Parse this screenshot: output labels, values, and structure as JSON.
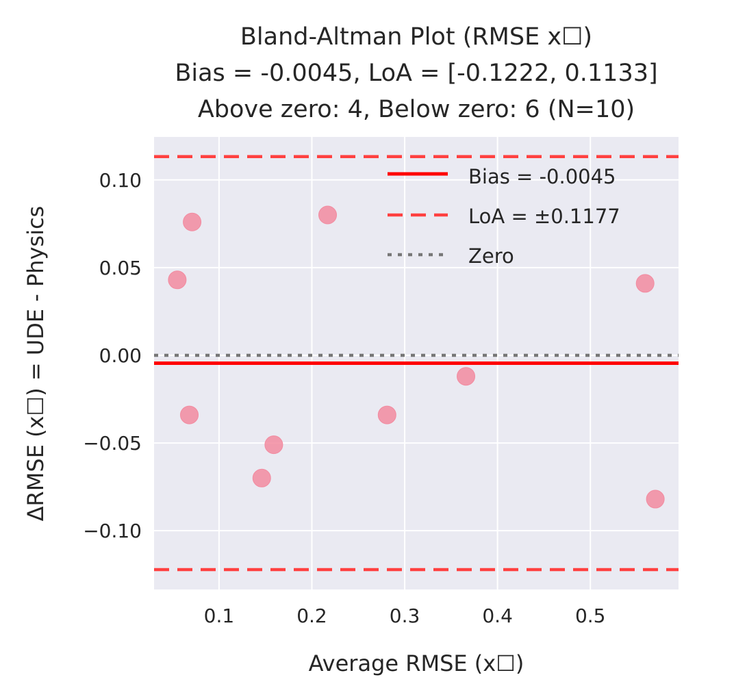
{
  "chart_data": {
    "type": "scatter",
    "title_lines": [
      "Bland-Altman Plot (RMSE x☐)",
      "Bias = -0.0045, LoA = [-0.1222, 0.1133]",
      "Above zero: 4, Below zero: 6 (N=10)"
    ],
    "xlabel": "Average RMSE (x☐)",
    "ylabel": "ΔRMSE (x☐) = UDE - Physics",
    "xlim": [
      0.03,
      0.595
    ],
    "ylim": [
      -0.1335,
      0.1245
    ],
    "x_ticks": [
      0.1,
      0.2,
      0.3,
      0.4,
      0.5
    ],
    "x_tick_labels": [
      "0.1",
      "0.2",
      "0.3",
      "0.4",
      "0.5"
    ],
    "y_ticks": [
      0.1,
      0.05,
      0.0,
      -0.05,
      -0.1
    ],
    "y_tick_labels": [
      "0.10",
      "0.05",
      "0.00",
      "−0.05",
      "−0.10"
    ],
    "grid": true,
    "points": [
      {
        "x": 0.071,
        "y": 0.076
      },
      {
        "x": 0.055,
        "y": 0.043
      },
      {
        "x": 0.068,
        "y": -0.034
      },
      {
        "x": 0.146,
        "y": -0.07
      },
      {
        "x": 0.159,
        "y": -0.051
      },
      {
        "x": 0.217,
        "y": 0.08
      },
      {
        "x": 0.281,
        "y": -0.034
      },
      {
        "x": 0.366,
        "y": -0.012
      },
      {
        "x": 0.559,
        "y": 0.041
      },
      {
        "x": 0.57,
        "y": -0.082
      }
    ],
    "reference_lines": [
      {
        "name": "bias",
        "y": -0.0045,
        "style": "solid",
        "color": "#ff0000"
      },
      {
        "name": "loa-upper",
        "y": 0.1133,
        "style": "dashed",
        "color": "#ff4040"
      },
      {
        "name": "loa-lower",
        "y": -0.1222,
        "style": "dashed",
        "color": "#ff4040"
      },
      {
        "name": "zero",
        "y": 0.0,
        "style": "dotted",
        "color": "#777777"
      }
    ],
    "legend": {
      "placement": "top-right",
      "entries": [
        {
          "label": "Bias = -0.0045",
          "style": "solid",
          "color": "#ff0000"
        },
        {
          "label": "LoA = ±0.1177",
          "style": "dashed",
          "color": "#ff4040"
        },
        {
          "label": "Zero",
          "style": "dotted",
          "color": "#777777"
        }
      ]
    },
    "colors": {
      "plot_background": "#eaeaf2",
      "grid": "#ffffff",
      "points": "#f28ba0"
    }
  }
}
